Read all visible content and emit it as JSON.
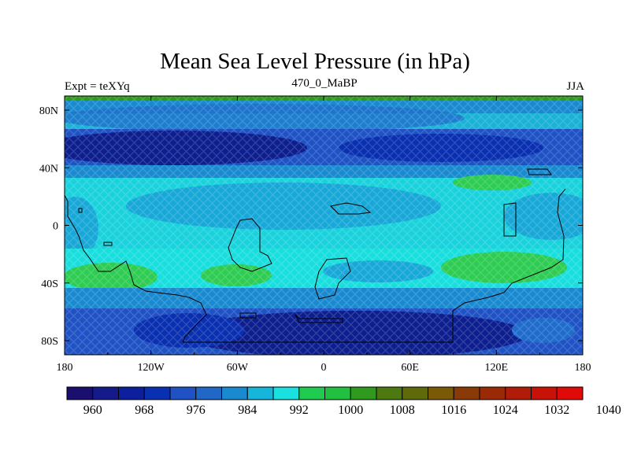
{
  "title": "Mean Sea Level Pressure (in hPa)",
  "subtitle_left": "Expt = teXYq",
  "subtitle_center": "470_0_MaBP",
  "subtitle_right": "JJA",
  "x_ticks": [
    "180",
    "120W",
    "60W",
    "0",
    "60E",
    "120E",
    "180"
  ],
  "y_ticks": [
    "80N",
    "40N",
    "0",
    "40S",
    "80S"
  ],
  "colorbar": {
    "colors": [
      "#1a0e6e",
      "#141a8a",
      "#0c1f9c",
      "#0a30b2",
      "#1f52c4",
      "#2168c6",
      "#1a8ad0",
      "#16b6da",
      "#1ae0e0",
      "#1fcc50",
      "#22c040",
      "#2f9a1e",
      "#4c7a10",
      "#5f6a0a",
      "#7a5a06",
      "#8a3a06",
      "#9a2a06",
      "#b01c08",
      "#c81208",
      "#e00a08"
    ],
    "labels": [
      "960",
      "968",
      "976",
      "984",
      "992",
      "1000",
      "1008",
      "1016",
      "1024",
      "1032",
      "1040"
    ]
  },
  "field_colors": {
    "deep": "#0d1f8f",
    "dark": "#0a30b2",
    "mid": "#1f6ccc",
    "light": "#18a8d8",
    "cyan": "#19dede",
    "green": "#2ecc52"
  }
}
